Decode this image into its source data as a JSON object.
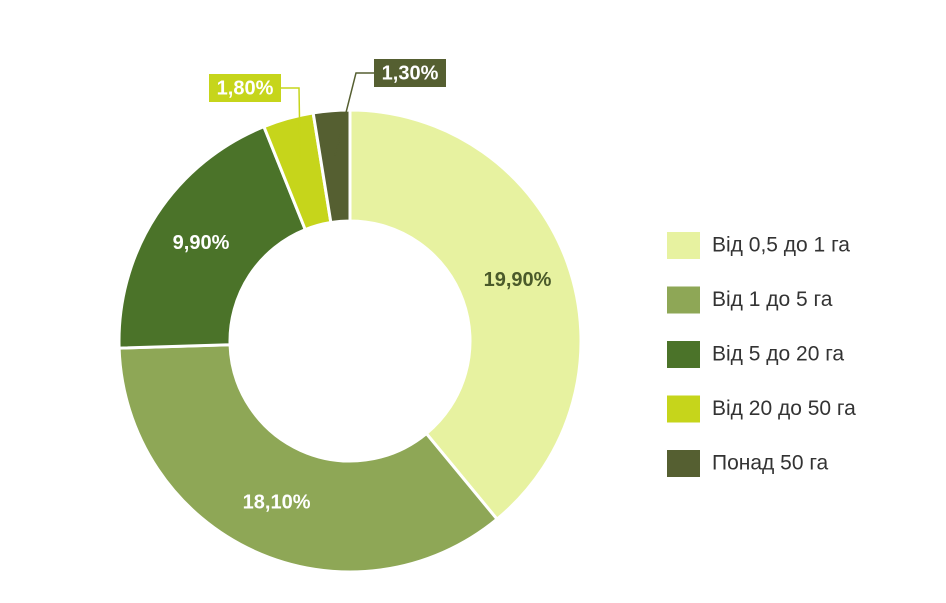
{
  "chart_data": {
    "type": "donut",
    "categories": [
      "Від 0,5 до 1 га",
      "Від 1 до 5 га",
      "Від 5 до 20 га",
      "Від 20 до 50 га",
      "Понад 50 га"
    ],
    "values": [
      19.9,
      18.1,
      9.9,
      1.8,
      1.3
    ],
    "value_labels": [
      "19,90%",
      "18,10%",
      "9,90%",
      "1,80%",
      "1,30%"
    ],
    "colors": [
      "#e7f2a0",
      "#8ea756",
      "#4b7329",
      "#c6d51b",
      "#555f31"
    ],
    "legend": "right"
  }
}
